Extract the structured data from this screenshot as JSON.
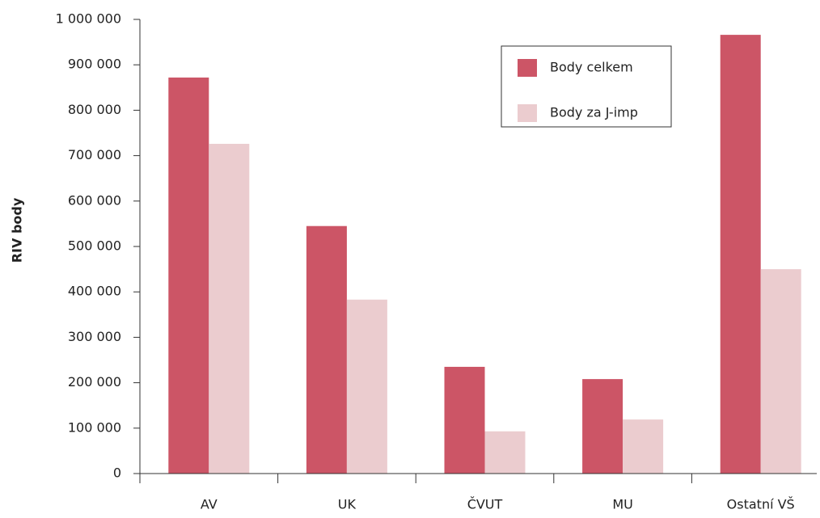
{
  "chart_data": {
    "type": "bar",
    "y_label": "RIV body",
    "categories": [
      "AV",
      "UK",
      "ČVUT",
      "MU",
      "Ostatní VŠ"
    ],
    "series": [
      {
        "name": "Body celkem",
        "color": "#cc5566",
        "values": [
          872000,
          545000,
          235000,
          208000,
          966000
        ]
      },
      {
        "name": "Body za J-imp",
        "color": "#ebcccf",
        "values": [
          726000,
          383000,
          93000,
          119000,
          450000
        ]
      }
    ],
    "ylim": [
      0,
      1000000
    ],
    "yticks": [
      0,
      {
        "value": 100000,
        "label": "100 000"
      },
      {
        "value": 200000,
        "label": "200 000"
      },
      {
        "value": 300000,
        "label": "300 000"
      },
      {
        "value": 400000,
        "label": "400 000"
      },
      {
        "value": 500000,
        "label": "500 000"
      },
      {
        "value": 600000,
        "label": "600 000"
      },
      {
        "value": 700000,
        "label": "700 000"
      },
      {
        "value": 800000,
        "label": "800 000"
      },
      {
        "value": 900000,
        "label": "900 000"
      },
      {
        "value": 1000000,
        "label": "1 000 000"
      }
    ],
    "legend": "upper right"
  }
}
